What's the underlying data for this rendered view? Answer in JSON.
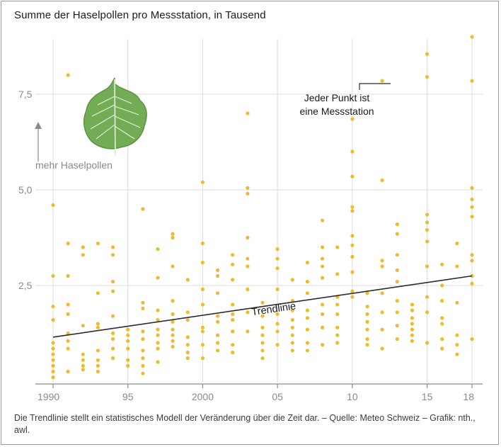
{
  "title": "Summe der Haselpollen pro Messstation, in Tausend",
  "footnote": "Die Trendlinie stellt ein statistisches Modell der Veränderung über die Zeit dar. –  Quelle: Meteo Schweiz – Grafik: nth., awl.",
  "colors": {
    "points": "#eebb2c",
    "trend": "#2b2b2b",
    "grid": "#dcdcdc",
    "axis": "#8a8a8a",
    "leaf": "#72ad55"
  },
  "chart_data": {
    "type": "scatter",
    "xlim": [
      1990,
      2018
    ],
    "ylim": [
      0,
      9
    ],
    "grid": true,
    "x_ticks": [
      1990,
      1995,
      2000,
      2005,
      2010,
      2015,
      2018
    ],
    "x_tick_labels": [
      "1990",
      "95",
      "2000",
      "05",
      "10",
      "15",
      "18"
    ],
    "y_ticks": [
      2.5,
      5.0,
      7.5
    ],
    "y_tick_labels": [
      "2,5",
      "5,0",
      "7,5"
    ],
    "annotations": {
      "more_pollen": "mehr Haselpollen",
      "point_note_line1": "Jeder Punkt ist",
      "point_note_line2": "eine Messstation",
      "trend_label": "Trendlinie"
    },
    "trend": {
      "x": [
        1990,
        2018
      ],
      "y": [
        1.15,
        2.75
      ]
    },
    "points": [
      {
        "x": 1990,
        "y": 4.6
      },
      {
        "x": 1990,
        "y": 2.75
      },
      {
        "x": 1990,
        "y": 1.95
      },
      {
        "x": 1990,
        "y": 1.6
      },
      {
        "x": 1990,
        "y": 1.0
      },
      {
        "x": 1990,
        "y": 0.85
      },
      {
        "x": 1990,
        "y": 0.7
      },
      {
        "x": 1990,
        "y": 0.55
      },
      {
        "x": 1990,
        "y": 0.4
      },
      {
        "x": 1990,
        "y": 0.25
      },
      {
        "x": 1990,
        "y": 0.1
      },
      {
        "x": 1991,
        "y": 8.0
      },
      {
        "x": 1991,
        "y": 3.6
      },
      {
        "x": 1991,
        "y": 2.75
      },
      {
        "x": 1991,
        "y": 2.0
      },
      {
        "x": 1991,
        "y": 1.75
      },
      {
        "x": 1991,
        "y": 1.25
      },
      {
        "x": 1991,
        "y": 1.05
      },
      {
        "x": 1991,
        "y": 0.85
      },
      {
        "x": 1991,
        "y": 0.25
      },
      {
        "x": 1992,
        "y": 3.5
      },
      {
        "x": 1992,
        "y": 3.3
      },
      {
        "x": 1992,
        "y": 1.45
      },
      {
        "x": 1992,
        "y": 0.7
      },
      {
        "x": 1992,
        "y": 0.55
      },
      {
        "x": 1992,
        "y": 0.4
      },
      {
        "x": 1992,
        "y": 0.3
      },
      {
        "x": 1993,
        "y": 3.6
      },
      {
        "x": 1993,
        "y": 2.3
      },
      {
        "x": 1993,
        "y": 1.5
      },
      {
        "x": 1993,
        "y": 1.4
      },
      {
        "x": 1993,
        "y": 0.8
      },
      {
        "x": 1993,
        "y": 0.55
      },
      {
        "x": 1993,
        "y": 0.4
      },
      {
        "x": 1993,
        "y": 0.25
      },
      {
        "x": 1994,
        "y": 3.5
      },
      {
        "x": 1994,
        "y": 3.3
      },
      {
        "x": 1994,
        "y": 2.6
      },
      {
        "x": 1994,
        "y": 2.35
      },
      {
        "x": 1994,
        "y": 1.7
      },
      {
        "x": 1994,
        "y": 1.25
      },
      {
        "x": 1994,
        "y": 1.1
      },
      {
        "x": 1994,
        "y": 0.85
      },
      {
        "x": 1994,
        "y": 0.6
      },
      {
        "x": 1995,
        "y": 1.35
      },
      {
        "x": 1995,
        "y": 1.2
      },
      {
        "x": 1995,
        "y": 1.05
      },
      {
        "x": 1995,
        "y": 0.85
      },
      {
        "x": 1995,
        "y": 0.55
      },
      {
        "x": 1995,
        "y": 0.4
      },
      {
        "x": 1996,
        "y": 4.5
      },
      {
        "x": 1996,
        "y": 2.05
      },
      {
        "x": 1996,
        "y": 1.9
      },
      {
        "x": 1996,
        "y": 1.3
      },
      {
        "x": 1996,
        "y": 1.1
      },
      {
        "x": 1996,
        "y": 0.8
      },
      {
        "x": 1996,
        "y": 0.6
      },
      {
        "x": 1996,
        "y": 0.4
      },
      {
        "x": 1996,
        "y": 0.2
      },
      {
        "x": 1997,
        "y": 3.45
      },
      {
        "x": 1997,
        "y": 2.7
      },
      {
        "x": 1997,
        "y": 1.85
      },
      {
        "x": 1997,
        "y": 1.6
      },
      {
        "x": 1997,
        "y": 1.35
      },
      {
        "x": 1997,
        "y": 1.2
      },
      {
        "x": 1997,
        "y": 1.0
      },
      {
        "x": 1997,
        "y": 0.85
      },
      {
        "x": 1997,
        "y": 0.5
      },
      {
        "x": 1998,
        "y": 3.85
      },
      {
        "x": 1998,
        "y": 3.75
      },
      {
        "x": 1998,
        "y": 3.0
      },
      {
        "x": 1998,
        "y": 2.1
      },
      {
        "x": 1998,
        "y": 1.75
      },
      {
        "x": 1998,
        "y": 1.55
      },
      {
        "x": 1998,
        "y": 1.35
      },
      {
        "x": 1998,
        "y": 1.2
      },
      {
        "x": 1998,
        "y": 1.05
      },
      {
        "x": 1998,
        "y": 0.9
      },
      {
        "x": 1999,
        "y": 2.65
      },
      {
        "x": 1999,
        "y": 1.8
      },
      {
        "x": 1999,
        "y": 1.6
      },
      {
        "x": 1999,
        "y": 1.15
      },
      {
        "x": 1999,
        "y": 0.95
      },
      {
        "x": 1999,
        "y": 0.75
      },
      {
        "x": 1999,
        "y": 0.6
      },
      {
        "x": 2000,
        "y": 5.2
      },
      {
        "x": 2000,
        "y": 3.6
      },
      {
        "x": 2000,
        "y": 3.1
      },
      {
        "x": 2000,
        "y": 2.4
      },
      {
        "x": 2000,
        "y": 2.0
      },
      {
        "x": 2000,
        "y": 1.4
      },
      {
        "x": 2000,
        "y": 1.3
      },
      {
        "x": 2000,
        "y": 0.95
      },
      {
        "x": 2000,
        "y": 0.6
      },
      {
        "x": 2001,
        "y": 2.9
      },
      {
        "x": 2001,
        "y": 2.75
      },
      {
        "x": 2001,
        "y": 2.3
      },
      {
        "x": 2001,
        "y": 1.7
      },
      {
        "x": 2001,
        "y": 1.55
      },
      {
        "x": 2001,
        "y": 1.2
      },
      {
        "x": 2001,
        "y": 1.0
      },
      {
        "x": 2001,
        "y": 0.8
      },
      {
        "x": 2002,
        "y": 3.3
      },
      {
        "x": 2002,
        "y": 3.05
      },
      {
        "x": 2002,
        "y": 2.65
      },
      {
        "x": 2002,
        "y": 2.0
      },
      {
        "x": 2002,
        "y": 1.75
      },
      {
        "x": 2002,
        "y": 1.6
      },
      {
        "x": 2002,
        "y": 1.3
      },
      {
        "x": 2002,
        "y": 0.95
      },
      {
        "x": 2002,
        "y": 0.75
      },
      {
        "x": 2003,
        "y": 7.0
      },
      {
        "x": 2003,
        "y": 5.05
      },
      {
        "x": 2003,
        "y": 4.9
      },
      {
        "x": 2003,
        "y": 3.75
      },
      {
        "x": 2003,
        "y": 3.2
      },
      {
        "x": 2003,
        "y": 3.0
      },
      {
        "x": 2003,
        "y": 2.4
      },
      {
        "x": 2003,
        "y": 1.8
      },
      {
        "x": 2003,
        "y": 1.3
      },
      {
        "x": 2004,
        "y": 2.05
      },
      {
        "x": 2004,
        "y": 1.7
      },
      {
        "x": 2004,
        "y": 1.4
      },
      {
        "x": 2004,
        "y": 1.2
      },
      {
        "x": 2004,
        "y": 1.0
      },
      {
        "x": 2004,
        "y": 0.8
      },
      {
        "x": 2004,
        "y": 0.6
      },
      {
        "x": 2005,
        "y": 3.45
      },
      {
        "x": 2005,
        "y": 3.2
      },
      {
        "x": 2005,
        "y": 2.95
      },
      {
        "x": 2005,
        "y": 2.4
      },
      {
        "x": 2005,
        "y": 1.75
      },
      {
        "x": 2005,
        "y": 1.5
      },
      {
        "x": 2005,
        "y": 1.3
      },
      {
        "x": 2005,
        "y": 0.95
      },
      {
        "x": 2006,
        "y": 2.65
      },
      {
        "x": 2006,
        "y": 2.1
      },
      {
        "x": 2006,
        "y": 1.85
      },
      {
        "x": 2006,
        "y": 1.6
      },
      {
        "x": 2006,
        "y": 1.4
      },
      {
        "x": 2006,
        "y": 1.2
      },
      {
        "x": 2006,
        "y": 1.0
      },
      {
        "x": 2006,
        "y": 0.8
      },
      {
        "x": 2007,
        "y": 3.1
      },
      {
        "x": 2007,
        "y": 2.6
      },
      {
        "x": 2007,
        "y": 2.3
      },
      {
        "x": 2007,
        "y": 1.85
      },
      {
        "x": 2007,
        "y": 1.65
      },
      {
        "x": 2007,
        "y": 1.35
      },
      {
        "x": 2007,
        "y": 1.0
      },
      {
        "x": 2007,
        "y": 0.8
      },
      {
        "x": 2008,
        "y": 4.2
      },
      {
        "x": 2008,
        "y": 3.5
      },
      {
        "x": 2008,
        "y": 3.2
      },
      {
        "x": 2008,
        "y": 3.0
      },
      {
        "x": 2008,
        "y": 2.7
      },
      {
        "x": 2008,
        "y": 2.0
      },
      {
        "x": 2008,
        "y": 1.75
      },
      {
        "x": 2008,
        "y": 1.4
      },
      {
        "x": 2008,
        "y": 0.95
      },
      {
        "x": 2009,
        "y": 3.5
      },
      {
        "x": 2009,
        "y": 2.8
      },
      {
        "x": 2009,
        "y": 2.2
      },
      {
        "x": 2009,
        "y": 2.0
      },
      {
        "x": 2009,
        "y": 1.75
      },
      {
        "x": 2009,
        "y": 1.4
      },
      {
        "x": 2009,
        "y": 1.2
      },
      {
        "x": 2009,
        "y": 1.0
      },
      {
        "x": 2010,
        "y": 6.85
      },
      {
        "x": 2010,
        "y": 6.0
      },
      {
        "x": 2010,
        "y": 5.35
      },
      {
        "x": 2010,
        "y": 4.55
      },
      {
        "x": 2010,
        "y": 4.45
      },
      {
        "x": 2010,
        "y": 3.8
      },
      {
        "x": 2010,
        "y": 3.55
      },
      {
        "x": 2010,
        "y": 3.25
      },
      {
        "x": 2010,
        "y": 2.85
      },
      {
        "x": 2010,
        "y": 2.35
      },
      {
        "x": 2010,
        "y": 2.2
      },
      {
        "x": 2011,
        "y": 2.3
      },
      {
        "x": 2011,
        "y": 1.95
      },
      {
        "x": 2011,
        "y": 1.75
      },
      {
        "x": 2011,
        "y": 1.55
      },
      {
        "x": 2011,
        "y": 1.35
      },
      {
        "x": 2011,
        "y": 1.1
      },
      {
        "x": 2011,
        "y": 0.95
      },
      {
        "x": 2012,
        "y": 7.85
      },
      {
        "x": 2012,
        "y": 5.25
      },
      {
        "x": 2012,
        "y": 3.15
      },
      {
        "x": 2012,
        "y": 3.0
      },
      {
        "x": 2012,
        "y": 2.3
      },
      {
        "x": 2012,
        "y": 1.8
      },
      {
        "x": 2012,
        "y": 1.35
      },
      {
        "x": 2012,
        "y": 0.85
      },
      {
        "x": 2013,
        "y": 4.1
      },
      {
        "x": 2013,
        "y": 3.85
      },
      {
        "x": 2013,
        "y": 3.3
      },
      {
        "x": 2013,
        "y": 2.9
      },
      {
        "x": 2013,
        "y": 2.6
      },
      {
        "x": 2013,
        "y": 2.1
      },
      {
        "x": 2013,
        "y": 1.8
      },
      {
        "x": 2013,
        "y": 1.45
      },
      {
        "x": 2013,
        "y": 1.1
      },
      {
        "x": 2014,
        "y": 2.0
      },
      {
        "x": 2014,
        "y": 1.85
      },
      {
        "x": 2014,
        "y": 1.65
      },
      {
        "x": 2014,
        "y": 1.5
      },
      {
        "x": 2014,
        "y": 1.35
      },
      {
        "x": 2014,
        "y": 1.2
      },
      {
        "x": 2014,
        "y": 1.05
      },
      {
        "x": 2015,
        "y": 8.55
      },
      {
        "x": 2015,
        "y": 7.95
      },
      {
        "x": 2015,
        "y": 4.35
      },
      {
        "x": 2015,
        "y": 4.15
      },
      {
        "x": 2015,
        "y": 3.95
      },
      {
        "x": 2015,
        "y": 3.65
      },
      {
        "x": 2015,
        "y": 3.0
      },
      {
        "x": 2015,
        "y": 2.2
      },
      {
        "x": 2015,
        "y": 1.8
      },
      {
        "x": 2015,
        "y": 1.0
      },
      {
        "x": 2016,
        "y": 3.05
      },
      {
        "x": 2016,
        "y": 2.5
      },
      {
        "x": 2016,
        "y": 2.1
      },
      {
        "x": 2016,
        "y": 1.65
      },
      {
        "x": 2016,
        "y": 1.5
      },
      {
        "x": 2016,
        "y": 1.1
      },
      {
        "x": 2016,
        "y": 0.85
      },
      {
        "x": 2017,
        "y": 3.6
      },
      {
        "x": 2017,
        "y": 3.0
      },
      {
        "x": 2017,
        "y": 2.05
      },
      {
        "x": 2017,
        "y": 1.2
      },
      {
        "x": 2017,
        "y": 0.95
      },
      {
        "x": 2017,
        "y": 0.7
      },
      {
        "x": 2018,
        "y": 9.0
      },
      {
        "x": 2018,
        "y": 7.85
      },
      {
        "x": 2018,
        "y": 5.05
      },
      {
        "x": 2018,
        "y": 4.75
      },
      {
        "x": 2018,
        "y": 4.55
      },
      {
        "x": 2018,
        "y": 4.3
      },
      {
        "x": 2018,
        "y": 3.3
      },
      {
        "x": 2018,
        "y": 3.15
      },
      {
        "x": 2018,
        "y": 2.75
      },
      {
        "x": 2018,
        "y": 2.55
      },
      {
        "x": 2018,
        "y": 1.1
      }
    ]
  }
}
